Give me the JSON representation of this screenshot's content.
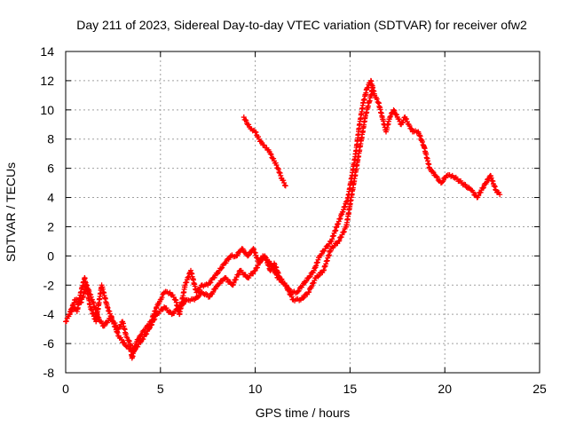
{
  "chart_data": {
    "type": "scatter",
    "title": "Day 211 of 2023, Sidereal Day-to-day VTEC variation (SDTVAR) for receiver ofw2",
    "xlabel": "GPS time / hours",
    "ylabel": "SDTVAR / TECUs",
    "xlim": [
      0,
      25
    ],
    "ylim": [
      -8,
      14
    ],
    "xticks": [
      0,
      5,
      10,
      15,
      20,
      25
    ],
    "yticks": [
      -8,
      -6,
      -4,
      -2,
      0,
      2,
      4,
      6,
      8,
      10,
      12,
      14
    ],
    "grid": true,
    "marker": "+",
    "color": "#ff0000",
    "series": [
      {
        "name": "SDTVAR",
        "x": [
          0.0,
          0.2,
          0.4,
          0.6,
          0.8,
          1.0,
          1.3,
          1.6,
          1.9,
          2.2,
          2.5,
          2.8,
          3.0,
          3.2,
          3.4,
          3.5,
          3.7,
          3.9,
          4.2,
          4.5,
          4.8,
          5.0,
          5.2,
          5.5,
          5.8,
          6.0,
          6.3,
          6.6,
          6.9,
          7.2,
          7.5,
          7.8,
          8.1,
          8.4,
          8.7,
          9.0,
          9.3,
          9.6,
          9.9,
          10.2,
          10.5,
          10.8,
          11.0,
          11.3,
          11.6,
          11.9,
          12.2,
          12.5,
          12.8,
          13.1,
          13.4,
          13.7,
          14.0,
          14.3,
          14.6,
          14.9,
          15.1,
          15.3,
          15.5,
          15.7,
          15.9,
          16.1,
          16.3,
          16.5,
          16.7,
          16.9,
          17.1,
          17.3,
          17.5,
          17.7,
          17.9,
          18.1,
          18.3,
          18.6,
          18.9,
          19.2,
          19.5,
          19.8,
          20.1,
          20.4,
          21.4,
          21.7,
          22.4,
          22.7,
          22.9
        ],
        "y": [
          -4.5,
          -4.0,
          -3.5,
          -3.8,
          -2.5,
          -1.5,
          -3.5,
          -4.5,
          -2.0,
          -3.5,
          -4.5,
          -5.0,
          -4.5,
          -5.5,
          -6.0,
          -7.0,
          -6.0,
          -5.5,
          -5.0,
          -4.5,
          -3.5,
          -3.0,
          -2.5,
          -2.5,
          -3.0,
          -4.0,
          -2.0,
          -1.0,
          -2.5,
          -2.0,
          -2.0,
          -1.5,
          -1.0,
          -0.5,
          0.0,
          0.0,
          0.5,
          0.0,
          0.5,
          -0.5,
          0.0,
          -1.0,
          -0.5,
          -1.5,
          -2.0,
          -2.5,
          -2.5,
          -2.0,
          -1.5,
          -1.0,
          0.0,
          0.5,
          1.0,
          2.0,
          3.0,
          4.0,
          5.5,
          7.0,
          9.0,
          10.5,
          11.5,
          12.0,
          11.0,
          10.5,
          9.5,
          8.5,
          9.5,
          10.0,
          9.5,
          9.0,
          9.5,
          9.0,
          8.5,
          8.5,
          7.5,
          6.0,
          5.5,
          5.0,
          5.5,
          5.5,
          4.5,
          4.0,
          5.5,
          4.5,
          4.2
        ]
      },
      {
        "name": "SDTVAR",
        "x": [
          0.2,
          0.5,
          0.8,
          1.1,
          1.4,
          1.7,
          2.0,
          2.4,
          2.8,
          3.2,
          3.6,
          4.0,
          4.4,
          4.8,
          5.2,
          5.6,
          6.0,
          6.4,
          6.8,
          7.2,
          7.6,
          8.0,
          8.4,
          8.8,
          9.2,
          9.6,
          10.0,
          10.4,
          10.8,
          11.2,
          11.6,
          12.0,
          12.4,
          12.8,
          13.2,
          13.6,
          14.0,
          14.4,
          14.8,
          15.0,
          15.2,
          15.4,
          15.6,
          15.8,
          16.0,
          16.2
        ],
        "y": [
          -4.0,
          -3.0,
          -3.2,
          -2.0,
          -3.0,
          -4.2,
          -4.8,
          -4.2,
          -5.5,
          -6.2,
          -6.5,
          -5.8,
          -5.0,
          -4.0,
          -3.5,
          -4.0,
          -3.5,
          -3.0,
          -3.0,
          -2.5,
          -2.8,
          -2.0,
          -1.5,
          -2.0,
          -1.0,
          -1.5,
          -1.0,
          0.0,
          -0.5,
          -1.5,
          -2.0,
          -3.0,
          -3.0,
          -2.5,
          -1.5,
          -1.0,
          0.5,
          1.0,
          2.0,
          3.5,
          5.0,
          6.5,
          8.0,
          9.5,
          10.5,
          11.5
        ]
      },
      {
        "name": "SDTVAR",
        "x": [
          9.4,
          9.6,
          9.8,
          10.0,
          10.2,
          10.4,
          10.6,
          10.8,
          11.0,
          11.2,
          11.4,
          11.6
        ],
        "y": [
          9.5,
          9.0,
          8.7,
          8.5,
          8.0,
          7.6,
          7.4,
          7.0,
          6.5,
          6.0,
          5.3,
          4.8
        ]
      }
    ]
  }
}
